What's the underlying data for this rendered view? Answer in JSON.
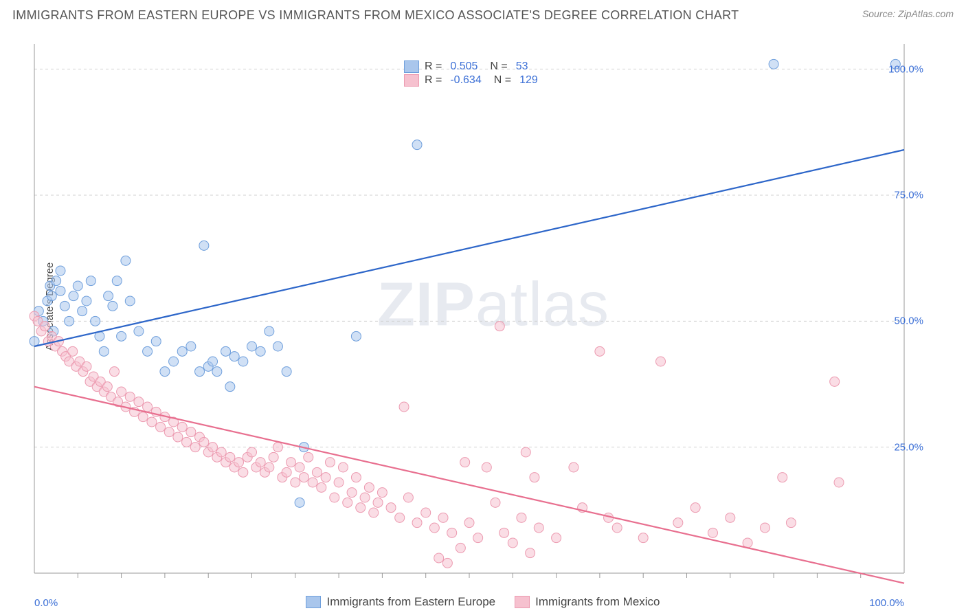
{
  "header": {
    "title": "IMMIGRANTS FROM EASTERN EUROPE VS IMMIGRANTS FROM MEXICO ASSOCIATE'S DEGREE CORRELATION CHART",
    "source": "Source: ZipAtlas.com"
  },
  "chart": {
    "type": "scatter",
    "y_axis_label": "Associate's Degree",
    "xlim": [
      0,
      100
    ],
    "ylim": [
      0,
      105
    ],
    "y_ticks": [
      25,
      50,
      75,
      100
    ],
    "y_tick_labels": [
      "25.0%",
      "50.0%",
      "75.0%",
      "100.0%"
    ],
    "x_tick_labels": {
      "left": "0.0%",
      "right": "100.0%"
    },
    "x_minor_ticks": [
      5,
      10,
      15,
      20,
      25,
      30,
      35,
      40,
      45,
      50,
      55,
      60,
      65,
      70,
      75,
      80,
      85,
      90,
      95
    ],
    "background_color": "#ffffff",
    "grid_color": "#d0d0d0",
    "axis_color": "#999999",
    "watermark": "ZIPatlas",
    "marker_radius": 7,
    "marker_opacity": 0.55,
    "line_width": 2.2,
    "series": [
      {
        "id": "eastern_europe",
        "label": "Immigrants from Eastern Europe",
        "fill_color": "#a9c6ec",
        "stroke_color": "#6f9fdc",
        "line_color": "#2d66c9",
        "R": 0.505,
        "N": 53,
        "trend": {
          "x1": 0,
          "y1": 45,
          "x2": 100,
          "y2": 84
        },
        "points": [
          [
            0,
            46
          ],
          [
            0.5,
            52
          ],
          [
            1,
            50
          ],
          [
            1.5,
            54
          ],
          [
            1.8,
            57
          ],
          [
            2,
            55
          ],
          [
            2.2,
            48
          ],
          [
            2.5,
            58
          ],
          [
            3,
            56
          ],
          [
            3,
            60
          ],
          [
            3.5,
            53
          ],
          [
            4,
            50
          ],
          [
            4.5,
            55
          ],
          [
            5,
            57
          ],
          [
            5.5,
            52
          ],
          [
            6,
            54
          ],
          [
            6.5,
            58
          ],
          [
            7,
            50
          ],
          [
            7.5,
            47
          ],
          [
            8,
            44
          ],
          [
            8.5,
            55
          ],
          [
            9,
            53
          ],
          [
            9.5,
            58
          ],
          [
            10,
            47
          ],
          [
            10.5,
            62
          ],
          [
            11,
            54
          ],
          [
            12,
            48
          ],
          [
            13,
            44
          ],
          [
            14,
            46
          ],
          [
            15,
            40
          ],
          [
            16,
            42
          ],
          [
            17,
            44
          ],
          [
            18,
            45
          ],
          [
            19,
            40
          ],
          [
            19.5,
            65
          ],
          [
            20,
            41
          ],
          [
            20.5,
            42
          ],
          [
            21,
            40
          ],
          [
            22,
            44
          ],
          [
            22.5,
            37
          ],
          [
            23,
            43
          ],
          [
            24,
            42
          ],
          [
            25,
            45
          ],
          [
            26,
            44
          ],
          [
            27,
            48
          ],
          [
            28,
            45
          ],
          [
            29,
            40
          ],
          [
            30.5,
            14
          ],
          [
            31,
            25
          ],
          [
            37,
            47
          ],
          [
            44,
            85
          ],
          [
            85,
            101
          ],
          [
            99,
            101
          ]
        ]
      },
      {
        "id": "mexico",
        "label": "Immigrants from Mexico",
        "fill_color": "#f6c1cf",
        "stroke_color": "#ec9ab0",
        "line_color": "#e86f8f",
        "R": -0.634,
        "N": 129,
        "trend": {
          "x1": 0,
          "y1": 37,
          "x2": 100,
          "y2": -2
        },
        "points": [
          [
            0,
            51
          ],
          [
            0.4,
            50
          ],
          [
            0.8,
            48
          ],
          [
            1.2,
            49
          ],
          [
            1.6,
            46
          ],
          [
            2,
            47
          ],
          [
            2.4,
            45
          ],
          [
            2.8,
            46
          ],
          [
            3.2,
            44
          ],
          [
            3.6,
            43
          ],
          [
            4,
            42
          ],
          [
            4.4,
            44
          ],
          [
            4.8,
            41
          ],
          [
            5.2,
            42
          ],
          [
            5.6,
            40
          ],
          [
            6,
            41
          ],
          [
            6.4,
            38
          ],
          [
            6.8,
            39
          ],
          [
            7.2,
            37
          ],
          [
            7.6,
            38
          ],
          [
            8,
            36
          ],
          [
            8.4,
            37
          ],
          [
            8.8,
            35
          ],
          [
            9.2,
            40
          ],
          [
            9.6,
            34
          ],
          [
            10,
            36
          ],
          [
            10.5,
            33
          ],
          [
            11,
            35
          ],
          [
            11.5,
            32
          ],
          [
            12,
            34
          ],
          [
            12.5,
            31
          ],
          [
            13,
            33
          ],
          [
            13.5,
            30
          ],
          [
            14,
            32
          ],
          [
            14.5,
            29
          ],
          [
            15,
            31
          ],
          [
            15.5,
            28
          ],
          [
            16,
            30
          ],
          [
            16.5,
            27
          ],
          [
            17,
            29
          ],
          [
            17.5,
            26
          ],
          [
            18,
            28
          ],
          [
            18.5,
            25
          ],
          [
            19,
            27
          ],
          [
            19.5,
            26
          ],
          [
            20,
            24
          ],
          [
            20.5,
            25
          ],
          [
            21,
            23
          ],
          [
            21.5,
            24
          ],
          [
            22,
            22
          ],
          [
            22.5,
            23
          ],
          [
            23,
            21
          ],
          [
            23.5,
            22
          ],
          [
            24,
            20
          ],
          [
            24.5,
            23
          ],
          [
            25,
            24
          ],
          [
            25.5,
            21
          ],
          [
            26,
            22
          ],
          [
            26.5,
            20
          ],
          [
            27,
            21
          ],
          [
            27.5,
            23
          ],
          [
            28,
            25
          ],
          [
            28.5,
            19
          ],
          [
            29,
            20
          ],
          [
            29.5,
            22
          ],
          [
            30,
            18
          ],
          [
            30.5,
            21
          ],
          [
            31,
            19
          ],
          [
            31.5,
            23
          ],
          [
            32,
            18
          ],
          [
            32.5,
            20
          ],
          [
            33,
            17
          ],
          [
            33.5,
            19
          ],
          [
            34,
            22
          ],
          [
            34.5,
            15
          ],
          [
            35,
            18
          ],
          [
            35.5,
            21
          ],
          [
            36,
            14
          ],
          [
            36.5,
            16
          ],
          [
            37,
            19
          ],
          [
            37.5,
            13
          ],
          [
            38,
            15
          ],
          [
            38.5,
            17
          ],
          [
            39,
            12
          ],
          [
            39.5,
            14
          ],
          [
            40,
            16
          ],
          [
            41,
            13
          ],
          [
            42,
            11
          ],
          [
            42.5,
            33
          ],
          [
            43,
            15
          ],
          [
            44,
            10
          ],
          [
            45,
            12
          ],
          [
            46,
            9
          ],
          [
            46.5,
            3
          ],
          [
            47,
            11
          ],
          [
            47.5,
            2
          ],
          [
            48,
            8
          ],
          [
            49,
            5
          ],
          [
            49.5,
            22
          ],
          [
            50,
            10
          ],
          [
            51,
            7
          ],
          [
            52,
            21
          ],
          [
            53,
            14
          ],
          [
            53.5,
            49
          ],
          [
            54,
            8
          ],
          [
            55,
            6
          ],
          [
            56,
            11
          ],
          [
            56.5,
            24
          ],
          [
            57,
            4
          ],
          [
            57.5,
            19
          ],
          [
            58,
            9
          ],
          [
            60,
            7
          ],
          [
            62,
            21
          ],
          [
            63,
            13
          ],
          [
            65,
            44
          ],
          [
            66,
            11
          ],
          [
            67,
            9
          ],
          [
            70,
            7
          ],
          [
            72,
            42
          ],
          [
            74,
            10
          ],
          [
            76,
            13
          ],
          [
            78,
            8
          ],
          [
            80,
            11
          ],
          [
            82,
            6
          ],
          [
            84,
            9
          ],
          [
            86,
            19
          ],
          [
            87,
            10
          ],
          [
            92,
            38
          ],
          [
            92.5,
            18
          ]
        ]
      }
    ],
    "stats_legend": {
      "rows": [
        {
          "swatch": "eastern_europe",
          "R_label": "R =",
          "R": "0.505",
          "N_label": "N =",
          "N": "53"
        },
        {
          "swatch": "mexico",
          "R_label": "R =",
          "R": "-0.634",
          "N_label": "N =",
          "N": "129"
        }
      ]
    },
    "bottom_legend": [
      {
        "swatch": "eastern_europe",
        "label": "Immigrants from Eastern Europe"
      },
      {
        "swatch": "mexico",
        "label": "Immigrants from Mexico"
      }
    ]
  }
}
